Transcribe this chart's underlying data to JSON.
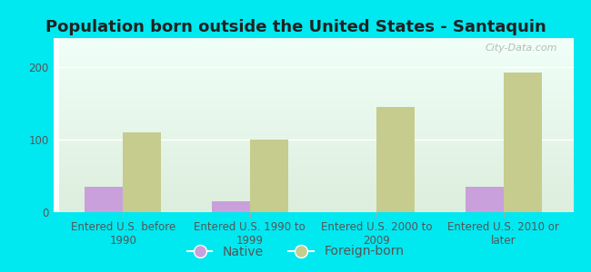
{
  "title": "Population born outside the United States - Santaquin",
  "categories": [
    "Entered U.S. before\n1990",
    "Entered U.S. 1990 to\n1999",
    "Entered U.S. 2000 to\n2009",
    "Entered U.S. 2010 or\nlater"
  ],
  "native_values": [
    35,
    15,
    0,
    35
  ],
  "foreign_values": [
    110,
    100,
    145,
    193
  ],
  "native_color": "#c9a0dc",
  "foreign_color": "#c5cc8e",
  "background_outer": "#00e8f0",
  "background_inner_top": "#f0fff8",
  "background_inner_bottom": "#ddeedd",
  "ylim": [
    0,
    240
  ],
  "yticks": [
    0,
    100,
    200
  ],
  "bar_width": 0.3,
  "title_fontsize": 13,
  "tick_fontsize": 8.5,
  "legend_fontsize": 10,
  "watermark_text": "City-Data.com",
  "title_color": "#222222",
  "tick_color": "#555555"
}
